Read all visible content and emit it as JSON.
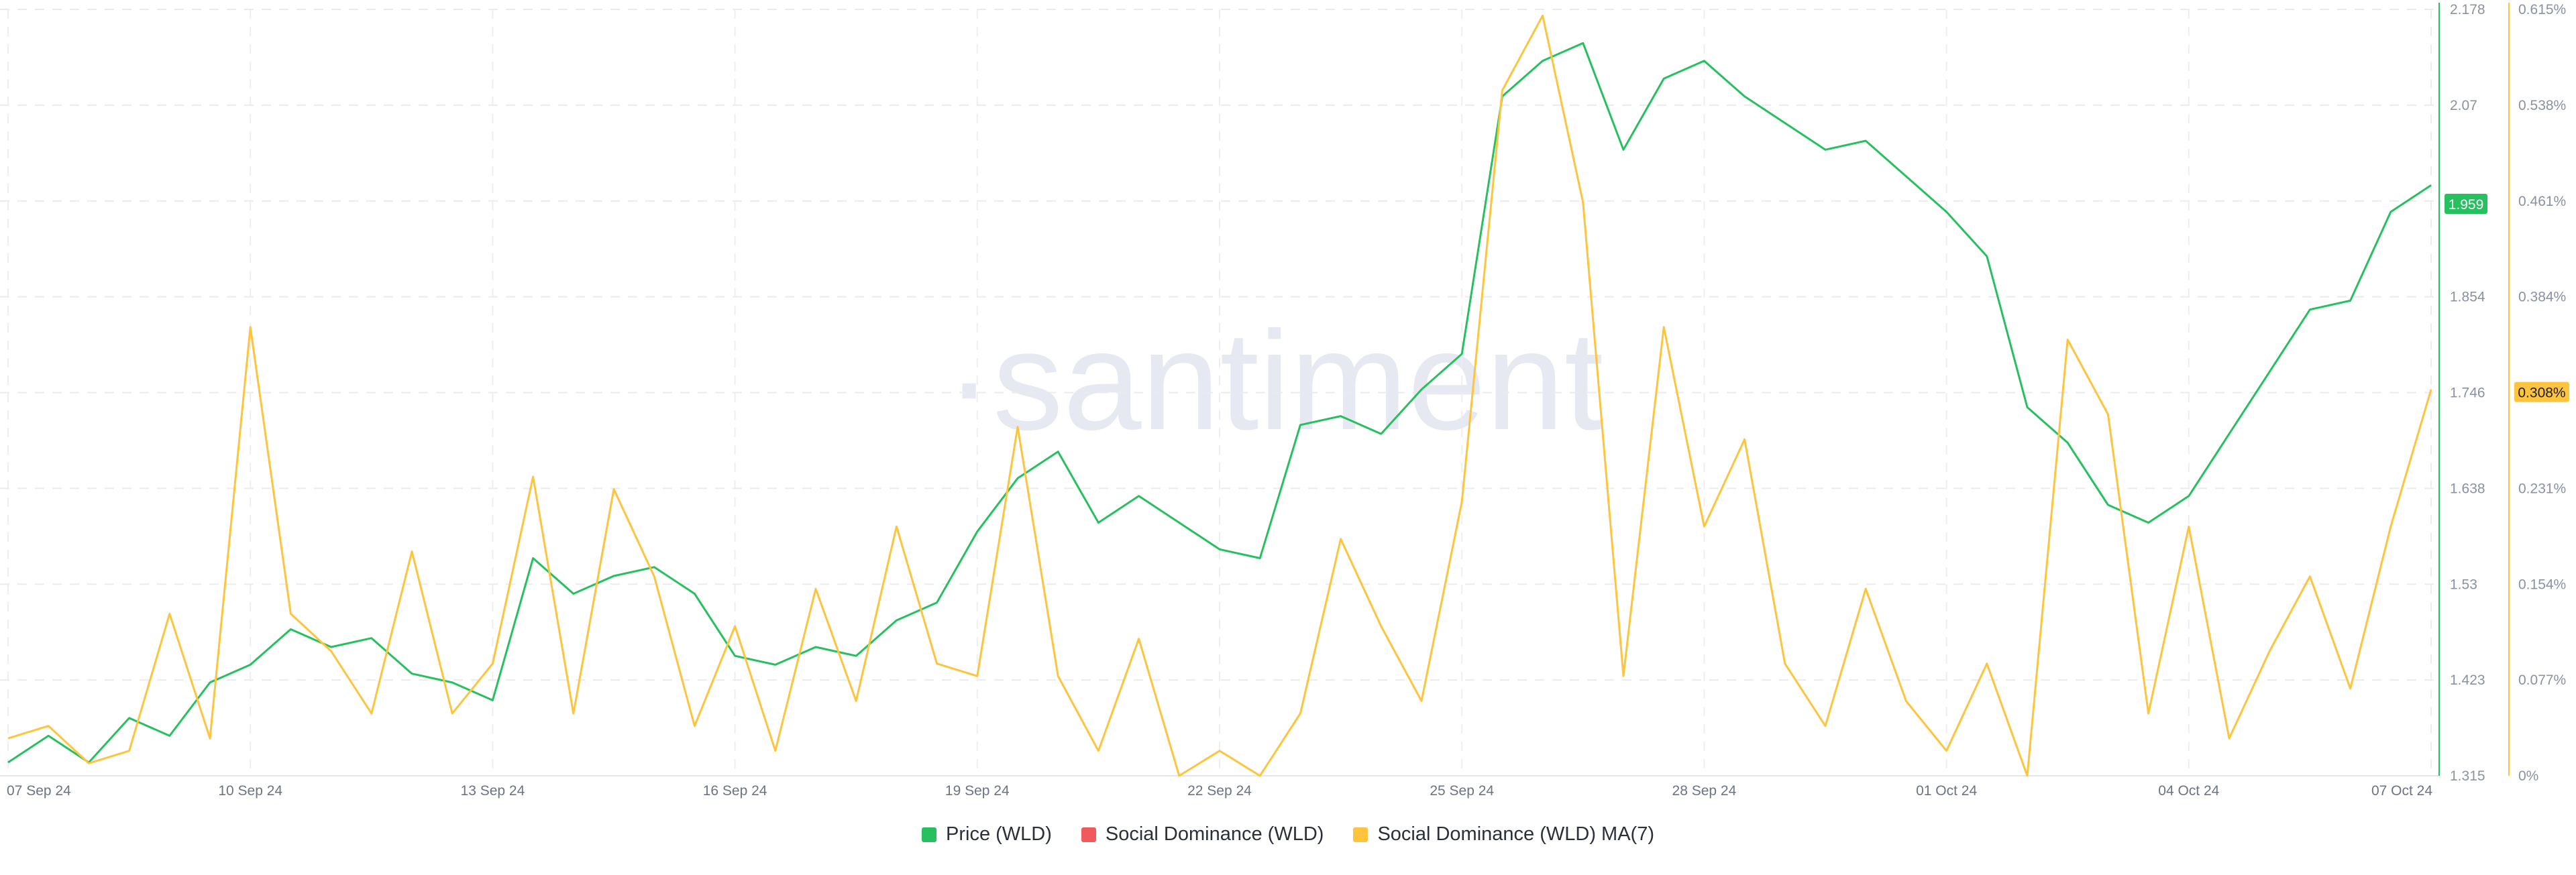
{
  "watermark": "·santiment",
  "chart_data": {
    "type": "line",
    "x_ticks": [
      "07 Sep 24",
      "10 Sep 24",
      "13 Sep 24",
      "16 Sep 24",
      "19 Sep 24",
      "22 Sep 24",
      "25 Sep 24",
      "28 Sep 24",
      "01 Oct 24",
      "04 Oct 24",
      "07 Oct 24"
    ],
    "x_range": [
      "07 Sep 24",
      "07 Oct 24"
    ],
    "y_left": {
      "ticks": [
        "1.315",
        "1.423",
        "1.53",
        "1.638",
        "1.746",
        "1.854",
        "1.959",
        "2.07",
        "2.178"
      ],
      "ylim": [
        1.315,
        2.178
      ]
    },
    "y_right": {
      "ticks": [
        "0%",
        "0.077%",
        "0.154%",
        "0.231%",
        "0.308%",
        "0.384%",
        "0.461%",
        "0.538%",
        "0.615%"
      ],
      "ylim": [
        0,
        0.615
      ]
    },
    "current_price_label": "1.959",
    "current_dominance_label": "0.308%",
    "colors": {
      "price": "#26c05e",
      "social_dominance": "#f05a5a",
      "social_dominance_ma": "#ffc43d",
      "right_axis": "#ffc43d",
      "left_axis": "#26c05e"
    },
    "series": [
      {
        "name": "Price (WLD)",
        "axis": "left",
        "x": [
          0,
          0.5,
          1,
          1.5,
          2,
          2.5,
          3,
          3.5,
          4,
          4.5,
          5,
          5.5,
          6,
          6.5,
          7,
          7.5,
          8,
          8.5,
          9,
          9.5,
          10,
          10.5,
          11,
          11.5,
          12,
          12.5,
          13,
          13.5,
          14,
          14.5,
          15,
          15.5,
          16,
          16.5,
          17,
          17.5,
          18,
          18.5,
          19,
          19.5,
          20,
          20.5,
          21,
          21.5,
          22,
          22.5,
          23,
          23.5,
          24,
          24.5,
          25,
          25.5,
          26,
          26.5,
          27,
          27.5,
          28,
          28.5,
          29,
          29.5,
          30
        ],
        "values": [
          1.33,
          1.36,
          1.33,
          1.38,
          1.36,
          1.42,
          1.44,
          1.48,
          1.46,
          1.47,
          1.43,
          1.42,
          1.4,
          1.56,
          1.52,
          1.54,
          1.55,
          1.52,
          1.45,
          1.44,
          1.46,
          1.45,
          1.49,
          1.51,
          1.59,
          1.65,
          1.68,
          1.6,
          1.63,
          1.6,
          1.57,
          1.56,
          1.71,
          1.72,
          1.7,
          1.75,
          1.79,
          2.08,
          2.12,
          2.14,
          2.02,
          2.1,
          2.12,
          2.08,
          2.05,
          2.02,
          2.03,
          1.99,
          1.95,
          1.9,
          1.73,
          1.69,
          1.62,
          1.6,
          1.63,
          1.7,
          1.77,
          1.84,
          1.85,
          1.95,
          1.98
        ]
      },
      {
        "name": "Social Dominance (WLD)",
        "axis": "right",
        "x": [],
        "values": []
      },
      {
        "name": "Social Dominance (WLD) MA(7)",
        "axis": "right",
        "x": [
          0,
          0.5,
          1,
          1.5,
          2,
          2.5,
          3,
          3.5,
          4,
          4.5,
          5,
          5.5,
          6,
          6.5,
          7,
          7.5,
          8,
          8.5,
          9,
          9.5,
          10,
          10.5,
          11,
          11.5,
          12,
          12.5,
          13,
          13.5,
          14,
          14.5,
          15,
          15.5,
          16,
          16.5,
          17,
          17.5,
          18,
          18.5,
          19,
          19.5,
          20,
          20.5,
          21,
          21.5,
          22,
          22.5,
          23,
          23.5,
          24,
          24.5,
          25,
          25.5,
          26,
          26.5,
          27,
          27.5,
          28,
          28.5,
          29,
          29.5,
          30
        ],
        "values": [
          0.03,
          0.04,
          0.01,
          0.02,
          0.13,
          0.03,
          0.36,
          0.13,
          0.1,
          0.05,
          0.18,
          0.05,
          0.09,
          0.24,
          0.05,
          0.23,
          0.16,
          0.04,
          0.12,
          0.02,
          0.15,
          0.06,
          0.2,
          0.09,
          0.08,
          0.28,
          0.08,
          0.02,
          0.11,
          0.0,
          0.02,
          0.0,
          0.05,
          0.19,
          0.12,
          0.06,
          0.22,
          0.55,
          0.61,
          0.46,
          0.08,
          0.36,
          0.2,
          0.27,
          0.09,
          0.04,
          0.15,
          0.06,
          0.02,
          0.09,
          0.0,
          0.35,
          0.29,
          0.05,
          0.2,
          0.03,
          0.1,
          0.16,
          0.07,
          0.2,
          0.31
        ]
      }
    ],
    "legend_position": "bottom"
  },
  "legend": {
    "items": [
      {
        "label": "Price (WLD)",
        "color": "#26c05e"
      },
      {
        "label": "Social Dominance (WLD)",
        "color": "#f05a5a"
      },
      {
        "label": "Social Dominance (WLD) MA(7)",
        "color": "#ffc43d"
      }
    ]
  }
}
